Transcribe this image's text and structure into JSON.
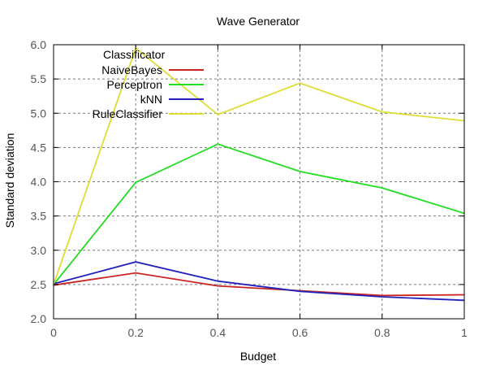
{
  "chart_data": {
    "type": "line",
    "title": "Wave Generator",
    "xlabel": "Budget",
    "ylabel": "Standard deviation",
    "x": [
      0,
      0.2,
      0.4,
      0.6,
      0.8,
      1
    ],
    "x_tick_labels": [
      "0",
      "0.2",
      "0.4",
      "0.6",
      "0.8",
      "1"
    ],
    "y_ticks": [
      2.0,
      2.5,
      3.0,
      3.5,
      4.0,
      4.5,
      5.0,
      5.5,
      6.0
    ],
    "y_tick_labels": [
      "2.0",
      "2.5",
      "3.0",
      "3.5",
      "4.0",
      "4.5",
      "5.0",
      "5.5",
      "6.0"
    ],
    "xlim": [
      0,
      1
    ],
    "ylim": [
      2.0,
      6.0
    ],
    "grid": true,
    "legend_title": "Classificator",
    "legend_position": "top-left",
    "series": [
      {
        "name": "NaiveBayes",
        "color": "#cc2222",
        "values": [
          2.49,
          2.67,
          2.48,
          2.41,
          2.34,
          2.35
        ]
      },
      {
        "name": "Perceptron",
        "color": "#22dd22",
        "values": [
          2.5,
          3.99,
          4.55,
          4.15,
          3.91,
          3.54
        ]
      },
      {
        "name": "kNN",
        "color": "#2222bb",
        "values": [
          2.51,
          2.83,
          2.55,
          2.4,
          2.32,
          2.27
        ]
      },
      {
        "name": "RuleClassifier",
        "color": "#dddd33",
        "values": [
          2.5,
          5.95,
          4.98,
          5.44,
          5.02,
          4.89
        ]
      }
    ]
  }
}
